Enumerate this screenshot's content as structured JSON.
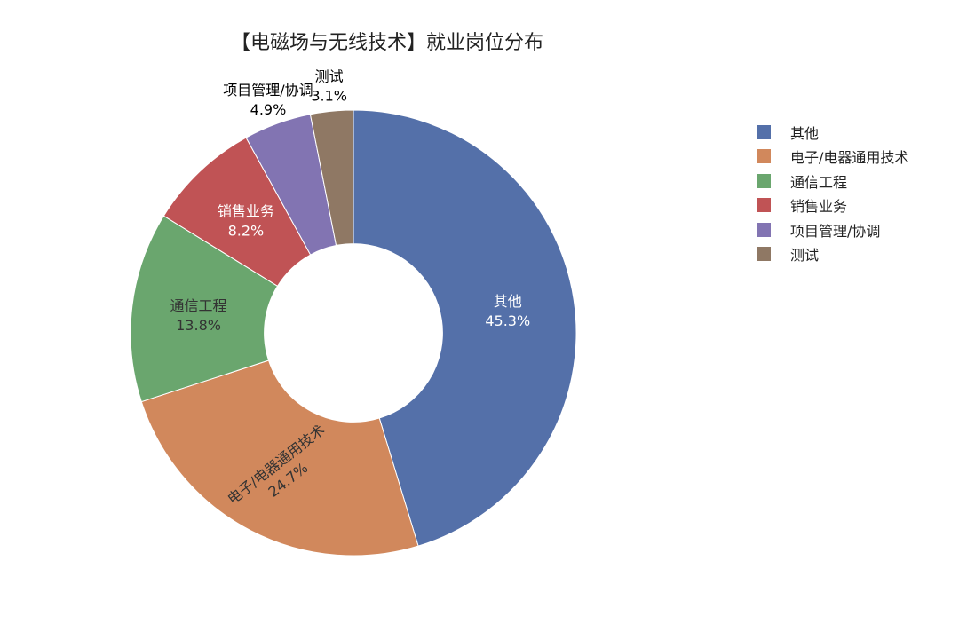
{
  "chart_data": {
    "type": "pie",
    "title": "【电磁场与无线技术】就业岗位分布",
    "series": [
      {
        "name": "其他",
        "value": 45.3,
        "label": "45.3%",
        "color": "#5470a9"
      },
      {
        "name": "电子/电器通用技术",
        "value": 24.7,
        "label": "24.7%",
        "color": "#d1885c"
      },
      {
        "name": "通信工程",
        "value": 13.8,
        "label": "13.8%",
        "color": "#6aa66e"
      },
      {
        "name": "销售业务",
        "value": 8.2,
        "label": "8.2%",
        "color": "#c05355"
      },
      {
        "name": "项目管理/协调",
        "value": 4.9,
        "label": "4.9%",
        "color": "#8274b2"
      },
      {
        "name": "测试",
        "value": 3.1,
        "label": "3.1%",
        "color": "#8f7864"
      }
    ],
    "hole": 0.4,
    "legend_position": "top-right"
  }
}
